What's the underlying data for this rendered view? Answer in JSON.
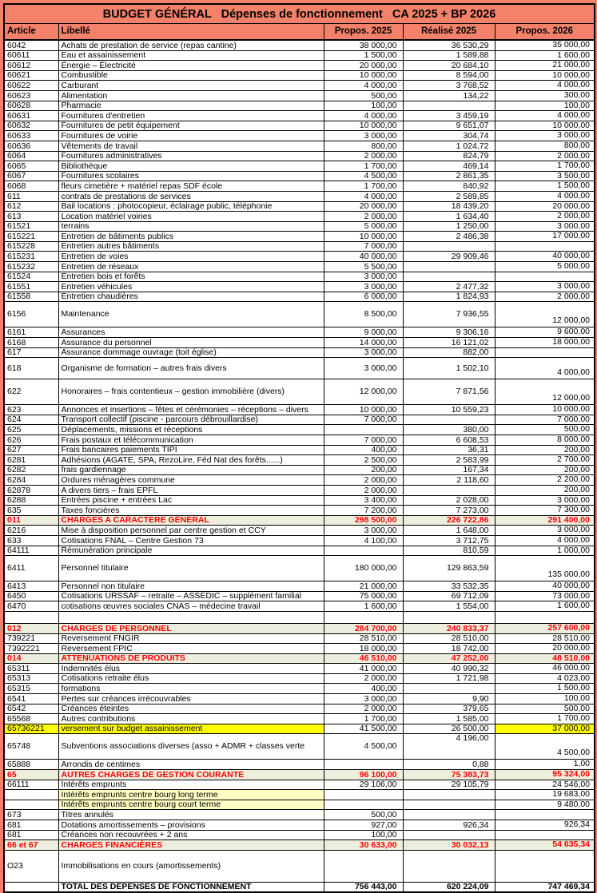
{
  "title": "BUDGET GÉNÉRAL   Dépenses de fonctionnement   CA 2025 + BP 2026",
  "columns": [
    "Article",
    "Libellé",
    "Propos. 2025",
    "Réalisé 2025",
    "Propos. 2026"
  ],
  "colors": {
    "page_and_header_bg": "#F4826A",
    "summary_row_bg": "#EDEEDE",
    "summary_text": "#FF0000",
    "highlight_yellow": "#FFFF00",
    "highlight_light_yellow": "#FFFFC4"
  },
  "table": {
    "rows": [
      [
        "6042",
        "Achats de prestation de service (repas cantine)",
        "38 000,00",
        "36 530,29",
        "35 000,00",
        ""
      ],
      [
        "60611",
        "Eau et assainissement",
        "1 500,00",
        "1 589,88",
        "1 600,00",
        ""
      ],
      [
        "60612",
        "Énergie – Électricité",
        "20 000,00",
        "20 684,10",
        "21 000,00",
        ""
      ],
      [
        "60621",
        "Combustible",
        "10 000,00",
        "8 594,00",
        "10 000,00",
        ""
      ],
      [
        "60622",
        "Carburant",
        "4 000,00",
        "3 768,52",
        "4 000,00",
        ""
      ],
      [
        "60623",
        "Alimentation",
        "500,00",
        "134,22",
        "300,00",
        ""
      ],
      [
        "60628",
        "Pharmacie",
        "100,00",
        "",
        "100,00",
        ""
      ],
      [
        "60631",
        "Fournitures d'entretien",
        "4 000,00",
        "3 459,19",
        "4 000,00",
        ""
      ],
      [
        "60632",
        "Fournitures de petit équipement",
        "10 000,00",
        "9 651,07",
        "10 000,00",
        ""
      ],
      [
        "60633",
        "Fournitures de voirie",
        "3 000,00",
        "304,74",
        "3 000,00",
        ""
      ],
      [
        "60636",
        "Vêtements de travail",
        "800,00",
        "1 024,72",
        "800,00",
        ""
      ],
      [
        "6064",
        "Fournitures administratives",
        "2 000,00",
        "824,79",
        "2 000,00",
        ""
      ],
      [
        "6065",
        "Bibliothèque",
        "1 700,00",
        "469,14",
        "1 700,00",
        ""
      ],
      [
        "6067",
        "Fournitures scolaires",
        "4 500,00",
        "2 861,35",
        "3 500,00",
        ""
      ],
      [
        "6068",
        "fleurs cimetière + matériel repas SDF école",
        "1 700,00",
        "840,92",
        "1 500,00",
        ""
      ],
      [
        "611",
        "contrats de prestations de services",
        "4 000,00",
        "2 589,85",
        "4 000,00",
        ""
      ],
      [
        "612",
        "Bail locations : photocopieur, éclairage public, téléphonie",
        "20 000,00",
        "18 439,20",
        "20 000,00",
        ""
      ],
      [
        "613",
        "Location matériel voiries",
        "2 000,00",
        "1 634,40",
        "2 000,00",
        ""
      ],
      [
        "61521",
        "terrains",
        "5 000,00",
        "1 250,00",
        "3 000,00",
        ""
      ],
      [
        "615221",
        "Entretien de bâtiments publics",
        "10 000,00",
        "2 486,38",
        "17 000,00",
        ""
      ],
      [
        "615228",
        "Entretien autres bâtiments",
        "7 000,00",
        "",
        "",
        ""
      ],
      [
        "615231",
        "Entretien de voies",
        "40 000,00",
        "29 909,46",
        "40 000,00",
        ""
      ],
      [
        "615232",
        "Entretien de réseaux",
        "5 500,00",
        "",
        "5 000,00",
        ""
      ],
      [
        "61524",
        "Entretien bois et forêts",
        "3 000,00",
        "",
        "",
        ""
      ],
      [
        "61551",
        "Entretien véhicules",
        "3 000,00",
        "2 477,32",
        "3 000,00",
        ""
      ],
      [
        "61558",
        "Entretien chaudières",
        "6 000,00",
        "1 824,93",
        "2 000,00",
        ""
      ],
      [
        "6156",
        "Maintenance",
        "8 500,00",
        "7 936,55",
        "12 000,00",
        "tall t29"
      ],
      [
        "6161",
        "Assurances",
        "9 000,00",
        "9 306,16",
        "9 600,00",
        ""
      ],
      [
        "6168",
        "Assurance du personnel",
        "14 000,00",
        "16 121,02",
        "18 000,00",
        ""
      ],
      [
        "617",
        "Assurance dommage ouvrage (toit église)",
        "3 000,00",
        "882,00",
        "",
        ""
      ],
      [
        "618",
        "Organisme de formation – autres frais divers",
        "3 000,00",
        "1 502,10",
        "4 000,00",
        "tall t24"
      ],
      [
        "622",
        "Honoraires – frais contentieux – gestion immobilière (divers)",
        "12 000,00",
        "7 871,56",
        "12 000,00",
        "tall t29"
      ],
      [
        "623",
        "Annonces et insertions – fêtes et cérémonies – réceptions – divers",
        "10 000,00",
        "10 559,23",
        "10 000,00",
        ""
      ],
      [
        "624",
        "Transport collectif (piscine - parcours débrouillardise)",
        "7 000,00",
        "",
        "7 000,00",
        ""
      ],
      [
        "625",
        "Déplacements, missions et réceptions",
        "",
        "380,00",
        "500,00",
        ""
      ],
      [
        "626",
        "Frais postaux et télécommunication",
        "7 000,00",
        "6 608,53",
        "8 000,00",
        ""
      ],
      [
        "627",
        "Frais bancaires paiements TIPI",
        "400,00",
        "36,31",
        "200,00",
        ""
      ],
      [
        "6281",
        "Adhésions (AGATE, SPA, RezoLire, Féd Nat des forêts......)",
        "2 500,00",
        "2 583,99",
        "2 700,00",
        ""
      ],
      [
        "6282",
        "frais gardiennage",
        "200,00",
        "167,34",
        "200,00",
        ""
      ],
      [
        "6284",
        "Ordures ménagères commune",
        "2 000,00",
        "2 118,60",
        "2 200,00",
        ""
      ],
      [
        "62878",
        "A divers tiers – frais EPFL",
        "2 000,00",
        "",
        "200,00",
        ""
      ],
      [
        "6288",
        "Entrées piscine + entrées Lac",
        "3 400,00",
        "2 028,00",
        "3 000,00",
        ""
      ],
      [
        "635",
        "Taxes foncières",
        "7 200,00",
        "7 273,00",
        "7 300,00",
        ""
      ],
      [
        "011",
        "CHARGES A CARACTÈRE GÉNÉRAL",
        "298 500,00",
        "226 722,86",
        "291 400,00",
        "summary"
      ],
      [
        "6216",
        "Mise à disposition personnel par centre gestion et CCY",
        "3 000,00",
        "1 648,00",
        "3 000,00",
        ""
      ],
      [
        "633",
        "Cotisations FNAL – Centre Gestion 73",
        "4 100,00",
        "3 712,75",
        "4 000,00",
        ""
      ],
      [
        "64111",
        "Rémunération principale",
        "",
        "810,59",
        "1 000,00",
        ""
      ],
      [
        "6411",
        "Personnel titulaire",
        "180 000,00",
        "129 863,59",
        "135 000,00",
        "tall t29"
      ],
      [
        "6413",
        "Personnel non titulaire",
        "21 000,00",
        "33 532,35",
        "40 000,00",
        ""
      ],
      [
        "6450",
        "Cotisations URSSAF – retraite – ASSEDIC – supplément familial",
        "75 000,00",
        "69 712,09",
        "73 000,00",
        ""
      ],
      [
        "6470",
        "cotisations œuvres sociales CNAS – médecine travail",
        "1 600,00",
        "1 554,00",
        "1 600,00",
        ""
      ],
      [
        "",
        "",
        "",
        "",
        "",
        "empty"
      ],
      [
        "012",
        "CHARGES DE PERSONNEL",
        "284 700,00",
        "240 833,37",
        "257 600,00",
        "summary"
      ],
      [
        "739221",
        "Reversement FNGIR",
        "28 510,00",
        "28 510,00",
        "28 510,00",
        ""
      ],
      [
        "7392221",
        "Reversement FPIC",
        "18 000,00",
        "18 742,00",
        "20 000,00",
        ""
      ],
      [
        "014",
        "ATTENUATIONS DE PRODUITS",
        "46 510,00",
        "47 252,00",
        "48 510,00",
        "summary"
      ],
      [
        "65311",
        "Indemnités élus",
        "41 000,00",
        "40 990,32",
        "46 000,00",
        ""
      ],
      [
        "65313",
        "Cotisations retraite élus",
        "2 000,00",
        "1 721,98",
        "4 023,00",
        ""
      ],
      [
        "65315",
        "formations",
        "400,00",
        "",
        "1 500,00",
        ""
      ],
      [
        "6541",
        "Pertes sur créances irrécouvrables",
        "3 000,00",
        "9,90",
        "100,00",
        ""
      ],
      [
        "6542",
        "Créances éteintes",
        "2 000,00",
        "379,65",
        "500,00",
        ""
      ],
      [
        "65568",
        "Autres contributions",
        "1 700,00",
        "1 585,00",
        "1 700,00",
        ""
      ],
      [
        "65736221",
        "versement sur budget assainissement",
        "41 500,00",
        "26 500,00",
        "37 000,00",
        "yellow"
      ],
      [
        "65748",
        "Subventions associations diverses (asso + ADMR + classes verte",
        "4 500,00",
        "4 196,00",
        "4 500,00",
        "tall t29 r25top"
      ],
      [
        "65888",
        "Arrondis de centimes",
        "",
        "0,88",
        "1,00",
        ""
      ],
      [
        "65",
        "AUTRES CHARGES DE GESTION COURANTE",
        "96 100,00",
        "75 383,73",
        "95 324,00",
        "summary"
      ],
      [
        "66111",
        "Intérêts emprunts",
        "29 106,00",
        "29 105,79",
        "24 546,00",
        ""
      ],
      [
        "",
        "Intérêts emprunts centre bourg long terme",
        "",
        "",
        "19 683,00",
        "subyellow"
      ],
      [
        "",
        "Intérêts emprunts centre bourg court terme",
        "",
        "",
        "9 480,00",
        "subyellow"
      ],
      [
        "673",
        "Titres annulés",
        "500,00",
        "",
        "",
        ""
      ],
      [
        "681",
        "Dotations amortissements – provisions",
        "927,00",
        "926,34",
        "926,34",
        ""
      ],
      [
        "681",
        "Créances non recouvrées + 2 ans",
        "100,00",
        "",
        "",
        ""
      ],
      [
        "66 et 67",
        "CHARGES FINANCIÈRES",
        "30 633,00",
        "30 032,13",
        "54 635,34",
        "summary"
      ],
      [
        "O23",
        "Immobilisations en cours (amortissements)",
        "",
        "",
        "",
        "tall t37"
      ],
      [
        "",
        "TOTAL DES DÉPENSES DE FONCTIONNEMENT",
        "756 443,00",
        "620 224,09",
        "747 469,34",
        "total"
      ]
    ]
  }
}
